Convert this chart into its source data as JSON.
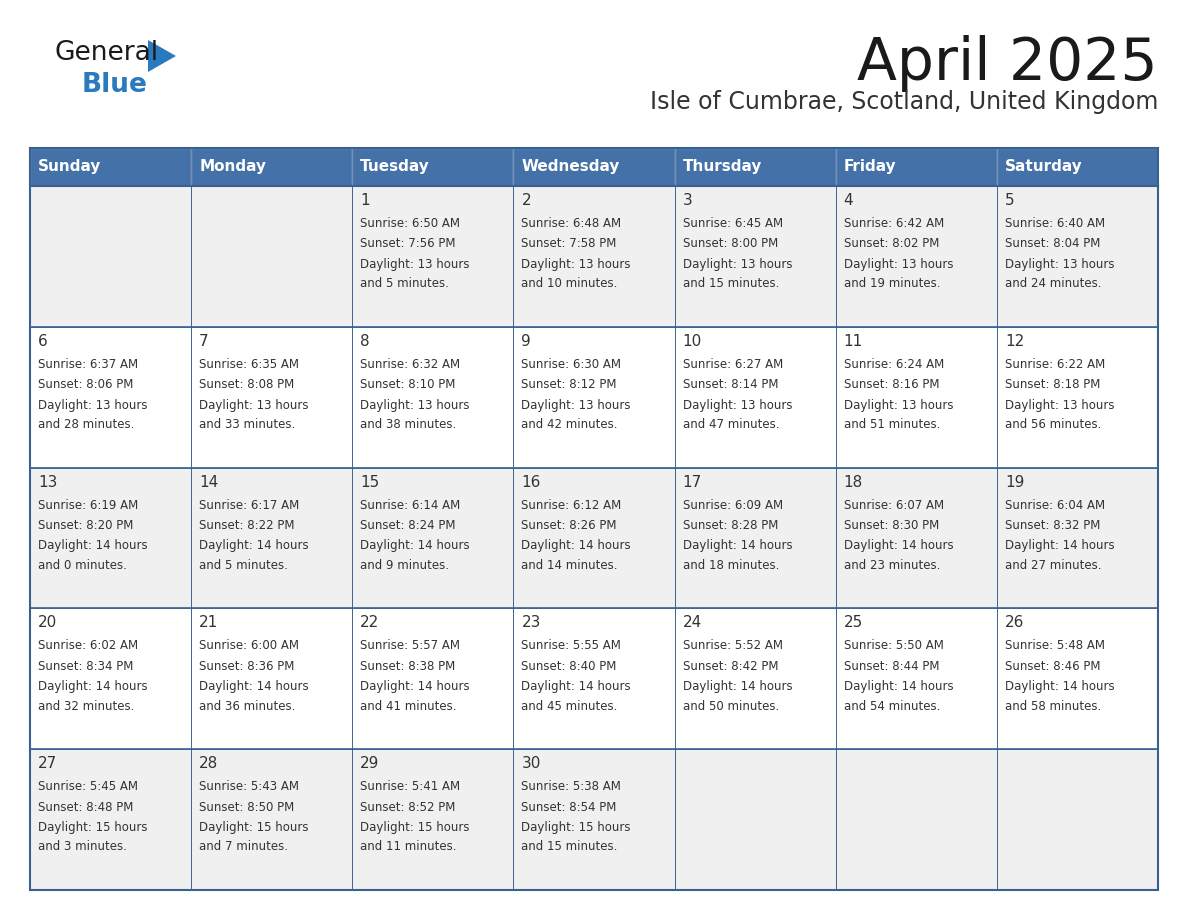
{
  "title": "April 2025",
  "subtitle": "Isle of Cumbrae, Scotland, United Kingdom",
  "days_of_week": [
    "Sunday",
    "Monday",
    "Tuesday",
    "Wednesday",
    "Thursday",
    "Friday",
    "Saturday"
  ],
  "header_bg": "#4472a8",
  "header_text": "#ffffff",
  "row_bg_odd": "#f0f0f0",
  "row_bg_even": "#ffffff",
  "border_color": "#3a6090",
  "text_color": "#333333",
  "title_color": "#1a1a1a",
  "subtitle_color": "#333333",
  "logo_general_color": "#1a1a1a",
  "logo_blue_color": "#2a7abf",
  "weeks": [
    {
      "days": [
        {
          "date": "",
          "sunrise": "",
          "sunset": "",
          "daylight": ""
        },
        {
          "date": "",
          "sunrise": "",
          "sunset": "",
          "daylight": ""
        },
        {
          "date": "1",
          "sunrise": "6:50 AM",
          "sunset": "7:56 PM",
          "daylight": "13 hours\nand 5 minutes."
        },
        {
          "date": "2",
          "sunrise": "6:48 AM",
          "sunset": "7:58 PM",
          "daylight": "13 hours\nand 10 minutes."
        },
        {
          "date": "3",
          "sunrise": "6:45 AM",
          "sunset": "8:00 PM",
          "daylight": "13 hours\nand 15 minutes."
        },
        {
          "date": "4",
          "sunrise": "6:42 AM",
          "sunset": "8:02 PM",
          "daylight": "13 hours\nand 19 minutes."
        },
        {
          "date": "5",
          "sunrise": "6:40 AM",
          "sunset": "8:04 PM",
          "daylight": "13 hours\nand 24 minutes."
        }
      ]
    },
    {
      "days": [
        {
          "date": "6",
          "sunrise": "6:37 AM",
          "sunset": "8:06 PM",
          "daylight": "13 hours\nand 28 minutes."
        },
        {
          "date": "7",
          "sunrise": "6:35 AM",
          "sunset": "8:08 PM",
          "daylight": "13 hours\nand 33 minutes."
        },
        {
          "date": "8",
          "sunrise": "6:32 AM",
          "sunset": "8:10 PM",
          "daylight": "13 hours\nand 38 minutes."
        },
        {
          "date": "9",
          "sunrise": "6:30 AM",
          "sunset": "8:12 PM",
          "daylight": "13 hours\nand 42 minutes."
        },
        {
          "date": "10",
          "sunrise": "6:27 AM",
          "sunset": "8:14 PM",
          "daylight": "13 hours\nand 47 minutes."
        },
        {
          "date": "11",
          "sunrise": "6:24 AM",
          "sunset": "8:16 PM",
          "daylight": "13 hours\nand 51 minutes."
        },
        {
          "date": "12",
          "sunrise": "6:22 AM",
          "sunset": "8:18 PM",
          "daylight": "13 hours\nand 56 minutes."
        }
      ]
    },
    {
      "days": [
        {
          "date": "13",
          "sunrise": "6:19 AM",
          "sunset": "8:20 PM",
          "daylight": "14 hours\nand 0 minutes."
        },
        {
          "date": "14",
          "sunrise": "6:17 AM",
          "sunset": "8:22 PM",
          "daylight": "14 hours\nand 5 minutes."
        },
        {
          "date": "15",
          "sunrise": "6:14 AM",
          "sunset": "8:24 PM",
          "daylight": "14 hours\nand 9 minutes."
        },
        {
          "date": "16",
          "sunrise": "6:12 AM",
          "sunset": "8:26 PM",
          "daylight": "14 hours\nand 14 minutes."
        },
        {
          "date": "17",
          "sunrise": "6:09 AM",
          "sunset": "8:28 PM",
          "daylight": "14 hours\nand 18 minutes."
        },
        {
          "date": "18",
          "sunrise": "6:07 AM",
          "sunset": "8:30 PM",
          "daylight": "14 hours\nand 23 minutes."
        },
        {
          "date": "19",
          "sunrise": "6:04 AM",
          "sunset": "8:32 PM",
          "daylight": "14 hours\nand 27 minutes."
        }
      ]
    },
    {
      "days": [
        {
          "date": "20",
          "sunrise": "6:02 AM",
          "sunset": "8:34 PM",
          "daylight": "14 hours\nand 32 minutes."
        },
        {
          "date": "21",
          "sunrise": "6:00 AM",
          "sunset": "8:36 PM",
          "daylight": "14 hours\nand 36 minutes."
        },
        {
          "date": "22",
          "sunrise": "5:57 AM",
          "sunset": "8:38 PM",
          "daylight": "14 hours\nand 41 minutes."
        },
        {
          "date": "23",
          "sunrise": "5:55 AM",
          "sunset": "8:40 PM",
          "daylight": "14 hours\nand 45 minutes."
        },
        {
          "date": "24",
          "sunrise": "5:52 AM",
          "sunset": "8:42 PM",
          "daylight": "14 hours\nand 50 minutes."
        },
        {
          "date": "25",
          "sunrise": "5:50 AM",
          "sunset": "8:44 PM",
          "daylight": "14 hours\nand 54 minutes."
        },
        {
          "date": "26",
          "sunrise": "5:48 AM",
          "sunset": "8:46 PM",
          "daylight": "14 hours\nand 58 minutes."
        }
      ]
    },
    {
      "days": [
        {
          "date": "27",
          "sunrise": "5:45 AM",
          "sunset": "8:48 PM",
          "daylight": "15 hours\nand 3 minutes."
        },
        {
          "date": "28",
          "sunrise": "5:43 AM",
          "sunset": "8:50 PM",
          "daylight": "15 hours\nand 7 minutes."
        },
        {
          "date": "29",
          "sunrise": "5:41 AM",
          "sunset": "8:52 PM",
          "daylight": "15 hours\nand 11 minutes."
        },
        {
          "date": "30",
          "sunrise": "5:38 AM",
          "sunset": "8:54 PM",
          "daylight": "15 hours\nand 15 minutes."
        },
        {
          "date": "",
          "sunrise": "",
          "sunset": "",
          "daylight": ""
        },
        {
          "date": "",
          "sunrise": "",
          "sunset": "",
          "daylight": ""
        },
        {
          "date": "",
          "sunrise": "",
          "sunset": "",
          "daylight": ""
        }
      ]
    }
  ]
}
